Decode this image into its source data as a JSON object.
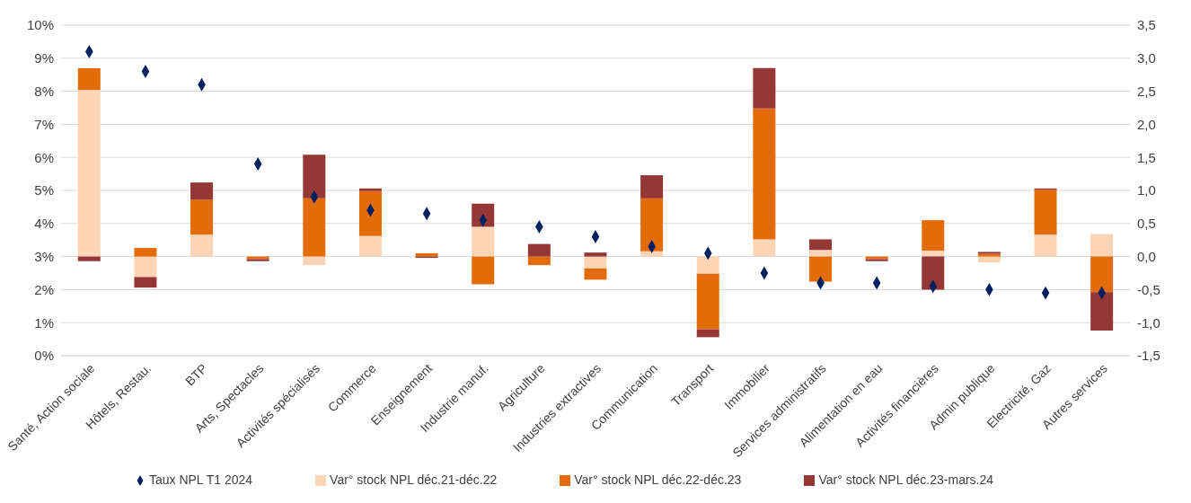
{
  "chart_data": {
    "type": "bar",
    "stacked": true,
    "categories": [
      "Santé, Action sociale",
      "Hôtels, Restau.",
      "BTP",
      "Arts, Spectacles",
      "Activités spécialisés",
      "Commerce",
      "Enseignement",
      "Industrie manuf.",
      "Agriculture",
      "Industries extractives",
      "Communication",
      "Transport",
      "Immobilier",
      "Services administratifs",
      "Alimentation en eau",
      "Activités financières",
      "Admin publique",
      "Electricité, Gaz",
      "Autres services"
    ],
    "series": [
      {
        "name": "Var° stock NPL déc.21-déc.22",
        "color": "#fbd5b5",
        "axis": "y2",
        "values": [
          2.52,
          -0.31,
          0.33,
          null,
          -0.13,
          0.31,
          null,
          0.45,
          null,
          -0.18,
          0.08,
          -0.26,
          0.26,
          0.1,
          null,
          0.09,
          -0.09,
          0.33,
          0.34
        ]
      },
      {
        "name": "Var° stock NPL déc.22-déc.23",
        "color": "#e36c09",
        "axis": "y2",
        "values": [
          0.33,
          0.13,
          0.53,
          -0.04,
          0.88,
          0.68,
          0.05,
          -0.42,
          -0.13,
          -0.17,
          0.8,
          -0.84,
          1.98,
          -0.38,
          -0.04,
          0.46,
          0.04,
          0.68,
          -0.54
        ]
      },
      {
        "name": "Var° stock NPL déc.23-mars.24",
        "color": "#953735",
        "axis": "y2",
        "values": [
          -0.07,
          -0.16,
          0.26,
          -0.03,
          0.66,
          0.04,
          -0.02,
          0.35,
          0.19,
          0.06,
          0.35,
          -0.12,
          0.61,
          0.16,
          -0.03,
          -0.5,
          0.03,
          0.02,
          -0.58
        ]
      },
      {
        "name": "Taux NPL T1 2024",
        "type": "scatter",
        "marker": "diamond",
        "color": "#002060",
        "axis": "y",
        "values": [
          9.2,
          8.6,
          8.2,
          5.8,
          4.8,
          4.4,
          4.3,
          4.1,
          3.9,
          3.6,
          3.3,
          3.1,
          2.5,
          2.2,
          2.2,
          2.1,
          2.0,
          1.9,
          1.9
        ]
      }
    ],
    "ylim": [
      0,
      10
    ],
    "yticks": [
      {
        "value": 0,
        "label": "0%"
      },
      {
        "value": 1,
        "label": "1%"
      },
      {
        "value": 2,
        "label": "2%"
      },
      {
        "value": 3,
        "label": "3%"
      },
      {
        "value": 4,
        "label": "4%"
      },
      {
        "value": 5,
        "label": "5%"
      },
      {
        "value": 6,
        "label": "6%"
      },
      {
        "value": 7,
        "label": "7%"
      },
      {
        "value": 8,
        "label": "8%"
      },
      {
        "value": 9,
        "label": "9%"
      },
      {
        "value": 10,
        "label": "10%"
      }
    ],
    "y2lim": [
      -1.5,
      3.5
    ],
    "y2ticks": [
      {
        "value": -1.5,
        "label": "-1,5"
      },
      {
        "value": -1,
        "label": "-1,0"
      },
      {
        "value": -0.5,
        "label": "-0,5"
      },
      {
        "value": 0,
        "label": "0,0"
      },
      {
        "value": 0.5,
        "label": "0,5"
      },
      {
        "value": 1,
        "label": "1,0"
      },
      {
        "value": 1.5,
        "label": "1,5"
      },
      {
        "value": 2,
        "label": "2,0"
      },
      {
        "value": 2.5,
        "label": "2,5"
      },
      {
        "value": 3,
        "label": "3,0"
      },
      {
        "value": 3.5,
        "label": "3,5"
      }
    ],
    "grid": "y",
    "legend": "bottom"
  }
}
